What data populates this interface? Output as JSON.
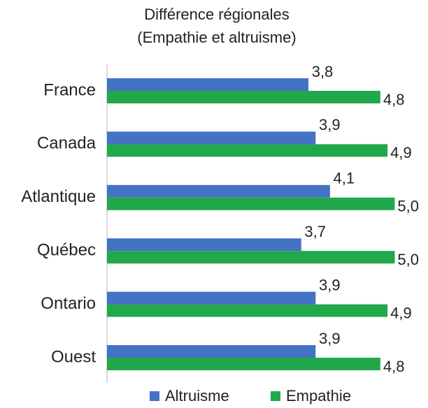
{
  "chart_data": {
    "type": "hbar",
    "title": "Différence régionales",
    "subtitle": "(Empathie et altruisme)",
    "categories": [
      "France",
      "Canada",
      "Atlantique",
      "Québec",
      "Ontario",
      "Ouest"
    ],
    "series": [
      {
        "name": "Altruisme",
        "color": "#4472c4",
        "values": [
          3.8,
          3.9,
          4.1,
          3.7,
          3.9,
          3.9
        ],
        "value_labels": [
          "3,8",
          "3,9",
          "4,1",
          "3,7",
          "3,9",
          "3,9"
        ]
      },
      {
        "name": "Empathie",
        "color": "#21a84a",
        "values": [
          4.8,
          4.9,
          5.0,
          5.0,
          4.9,
          4.8
        ],
        "value_labels": [
          "4,8",
          "4,9",
          "5,0",
          "5,0",
          "4,9",
          "4,8"
        ]
      }
    ],
    "xlim": [
      1,
      5.2
    ]
  }
}
